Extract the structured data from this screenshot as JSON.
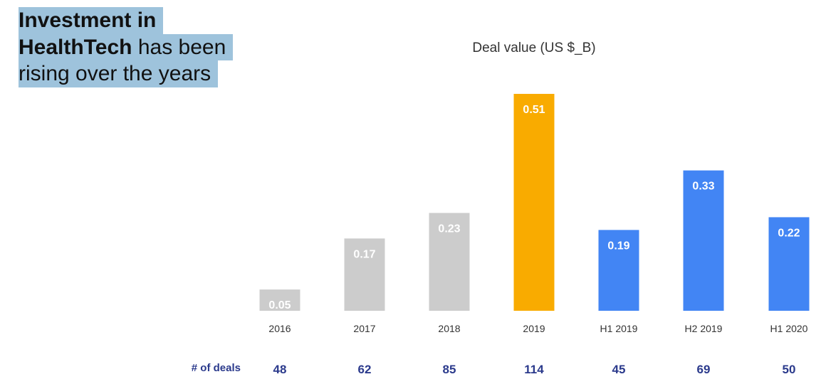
{
  "title": {
    "line1": "Investment in",
    "line2_bold": "HealthTech",
    "line2_rest": " has been",
    "line3": "rising over the years"
  },
  "chart_data": {
    "type": "bar",
    "title": "Deal value (US $_B)",
    "categories": [
      "2016",
      "2017",
      "2018",
      "2019",
      "H1 2019",
      "H2 2019",
      "H1 2020"
    ],
    "values": [
      0.05,
      0.17,
      0.23,
      0.51,
      0.19,
      0.33,
      0.22
    ],
    "value_labels": [
      "0.05",
      "0.17",
      "0.23",
      "0.51",
      "0.19",
      "0.33",
      "0.22"
    ],
    "colors": [
      "#cccccc",
      "#cccccc",
      "#cccccc",
      "#f9ab00",
      "#4285f4",
      "#4285f4",
      "#4285f4"
    ],
    "ylim": [
      0,
      0.51
    ],
    "deals_label": "# of deals",
    "deals": [
      "48",
      "62",
      "85",
      "114",
      "45",
      "69",
      "50"
    ],
    "deals_color": "#2b3a8c"
  }
}
